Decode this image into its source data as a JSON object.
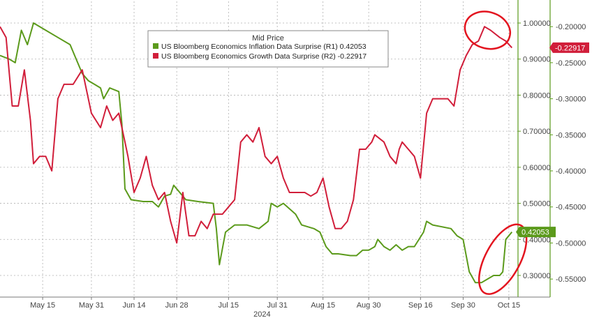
{
  "chart_data": {
    "type": "line",
    "legend": {
      "title": "Mid Price",
      "position": "top-center",
      "entries": [
        {
          "label": "US Bloomberg Economics Inflation Data Surprise",
          "axis": "(R1)",
          "value": "0.42053",
          "color": "#5b9a1b"
        },
        {
          "label": "US Bloomberg Economics Growth Data Surprise",
          "axis": "(R2)",
          "value": "-0.22917",
          "color": "#d11e3a"
        }
      ]
    },
    "x_axis": {
      "ticks": [
        "May 15",
        "May 31",
        "Jun 14",
        "Jun 28",
        "Jul 15",
        "Jul 31",
        "Aug 15",
        "Aug 30",
        "Sep 16",
        "Sep 30",
        "Oct 15"
      ],
      "year_label": "2024",
      "range": [
        "2024-05-01",
        "2024-10-18"
      ]
    },
    "r1_axis": {
      "ticks": [
        "1.00000",
        "0.90000",
        "0.80000",
        "0.70000",
        "0.60000",
        "0.50000",
        "0.40000",
        "0.30000"
      ],
      "range": [
        0.24,
        1.06
      ],
      "color": "#5b9a1b"
    },
    "r2_axis": {
      "ticks": [
        "-0.20000",
        "-0.25000",
        "-0.30000",
        "-0.35000",
        "-0.40000",
        "-0.45000",
        "-0.50000",
        "-0.55000"
      ],
      "range": [
        -0.575,
        -0.165
      ],
      "color": "#5b9a1b"
    },
    "last_value_tags": [
      {
        "series": "growth",
        "value": "-0.22917",
        "color": "#d11e3a"
      },
      {
        "series": "inflation",
        "value": "0.42053",
        "color": "#5b9a1b"
      }
    ],
    "series": [
      {
        "name": "US Bloomberg Economics Inflation Data Surprise",
        "axis": "R1",
        "color": "#5b9a1b",
        "points": [
          [
            "2024-05-01",
            0.91
          ],
          [
            "2024-05-04",
            0.9
          ],
          [
            "2024-05-06",
            0.89
          ],
          [
            "2024-05-08",
            0.98
          ],
          [
            "2024-05-10",
            0.94
          ],
          [
            "2024-05-12",
            1.0
          ],
          [
            "2024-05-16",
            0.98
          ],
          [
            "2024-05-20",
            0.96
          ],
          [
            "2024-05-24",
            0.94
          ],
          [
            "2024-05-26",
            0.9
          ],
          [
            "2024-05-28",
            0.86
          ],
          [
            "2024-05-30",
            0.84
          ],
          [
            "2024-06-01",
            0.83
          ],
          [
            "2024-06-03",
            0.82
          ],
          [
            "2024-06-04",
            0.79
          ],
          [
            "2024-06-06",
            0.82
          ],
          [
            "2024-06-09",
            0.81
          ],
          [
            "2024-06-10",
            0.72
          ],
          [
            "2024-06-11",
            0.54
          ],
          [
            "2024-06-13",
            0.51
          ],
          [
            "2024-06-17",
            0.505
          ],
          [
            "2024-06-20",
            0.505
          ],
          [
            "2024-06-22",
            0.49
          ],
          [
            "2024-06-24",
            0.52
          ],
          [
            "2024-06-26",
            0.525
          ],
          [
            "2024-06-27",
            0.55
          ],
          [
            "2024-06-29",
            0.53
          ],
          [
            "2024-07-01",
            0.51
          ],
          [
            "2024-07-05",
            0.505
          ],
          [
            "2024-07-10",
            0.5
          ],
          [
            "2024-07-11",
            0.43
          ],
          [
            "2024-07-12",
            0.33
          ],
          [
            "2024-07-14",
            0.42
          ],
          [
            "2024-07-17",
            0.44
          ],
          [
            "2024-07-21",
            0.44
          ],
          [
            "2024-07-25",
            0.43
          ],
          [
            "2024-07-28",
            0.45
          ],
          [
            "2024-07-29",
            0.5
          ],
          [
            "2024-07-31",
            0.49
          ],
          [
            "2024-08-02",
            0.5
          ],
          [
            "2024-08-06",
            0.47
          ],
          [
            "2024-08-08",
            0.44
          ],
          [
            "2024-08-12",
            0.43
          ],
          [
            "2024-08-14",
            0.42
          ],
          [
            "2024-08-16",
            0.38
          ],
          [
            "2024-08-18",
            0.36
          ],
          [
            "2024-08-20",
            0.36
          ],
          [
            "2024-08-24",
            0.355
          ],
          [
            "2024-08-26",
            0.355
          ],
          [
            "2024-08-28",
            0.37
          ],
          [
            "2024-08-30",
            0.37
          ],
          [
            "2024-09-01",
            0.38
          ],
          [
            "2024-09-02",
            0.4
          ],
          [
            "2024-09-04",
            0.38
          ],
          [
            "2024-09-06",
            0.37
          ],
          [
            "2024-09-08",
            0.385
          ],
          [
            "2024-09-10",
            0.37
          ],
          [
            "2024-09-12",
            0.38
          ],
          [
            "2024-09-14",
            0.38
          ],
          [
            "2024-09-17",
            0.42
          ],
          [
            "2024-09-18",
            0.45
          ],
          [
            "2024-09-20",
            0.44
          ],
          [
            "2024-09-23",
            0.435
          ],
          [
            "2024-09-26",
            0.43
          ],
          [
            "2024-09-28",
            0.41
          ],
          [
            "2024-09-30",
            0.4
          ],
          [
            "2024-10-02",
            0.31
          ],
          [
            "2024-10-04",
            0.28
          ],
          [
            "2024-10-06",
            0.28
          ],
          [
            "2024-10-08",
            0.29
          ],
          [
            "2024-10-10",
            0.3
          ],
          [
            "2024-10-12",
            0.3
          ],
          [
            "2024-10-13",
            0.31
          ],
          [
            "2024-10-14",
            0.4
          ],
          [
            "2024-10-16",
            0.42053
          ]
        ]
      },
      {
        "name": "US Bloomberg Economics Growth Data Surprise",
        "axis": "R2",
        "color": "#d11e3a",
        "points": [
          [
            "2024-05-01",
            -0.2
          ],
          [
            "2024-05-03",
            -0.215
          ],
          [
            "2024-05-05",
            -0.31
          ],
          [
            "2024-05-07",
            -0.31
          ],
          [
            "2024-05-09",
            -0.26
          ],
          [
            "2024-05-11",
            -0.33
          ],
          [
            "2024-05-12",
            -0.39
          ],
          [
            "2024-05-14",
            -0.38
          ],
          [
            "2024-05-16",
            -0.38
          ],
          [
            "2024-05-18",
            -0.4
          ],
          [
            "2024-05-20",
            -0.3
          ],
          [
            "2024-05-22",
            -0.28
          ],
          [
            "2024-05-25",
            -0.28
          ],
          [
            "2024-05-28",
            -0.26
          ],
          [
            "2024-05-31",
            -0.32
          ],
          [
            "2024-06-03",
            -0.34
          ],
          [
            "2024-06-05",
            -0.31
          ],
          [
            "2024-06-07",
            -0.33
          ],
          [
            "2024-06-09",
            -0.32
          ],
          [
            "2024-06-11",
            -0.36
          ],
          [
            "2024-06-12",
            -0.38
          ],
          [
            "2024-06-14",
            -0.43
          ],
          [
            "2024-06-16",
            -0.41
          ],
          [
            "2024-06-18",
            -0.38
          ],
          [
            "2024-06-20",
            -0.42
          ],
          [
            "2024-06-22",
            -0.44
          ],
          [
            "2024-06-24",
            -0.43
          ],
          [
            "2024-06-26",
            -0.47
          ],
          [
            "2024-06-28",
            -0.5
          ],
          [
            "2024-06-30",
            -0.43
          ],
          [
            "2024-07-02",
            -0.49
          ],
          [
            "2024-07-04",
            -0.49
          ],
          [
            "2024-07-06",
            -0.47
          ],
          [
            "2024-07-08",
            -0.48
          ],
          [
            "2024-07-10",
            -0.46
          ],
          [
            "2024-07-13",
            -0.46
          ],
          [
            "2024-07-15",
            -0.45
          ],
          [
            "2024-07-17",
            -0.44
          ],
          [
            "2024-07-19",
            -0.36
          ],
          [
            "2024-07-21",
            -0.35
          ],
          [
            "2024-07-23",
            -0.36
          ],
          [
            "2024-07-25",
            -0.34
          ],
          [
            "2024-07-27",
            -0.38
          ],
          [
            "2024-07-29",
            -0.39
          ],
          [
            "2024-07-31",
            -0.38
          ],
          [
            "2024-08-02",
            -0.41
          ],
          [
            "2024-08-04",
            -0.43
          ],
          [
            "2024-08-06",
            -0.43
          ],
          [
            "2024-08-09",
            -0.43
          ],
          [
            "2024-08-11",
            -0.435
          ],
          [
            "2024-08-13",
            -0.43
          ],
          [
            "2024-08-15",
            -0.41
          ],
          [
            "2024-08-17",
            -0.45
          ],
          [
            "2024-08-19",
            -0.48
          ],
          [
            "2024-08-21",
            -0.48
          ],
          [
            "2024-08-23",
            -0.47
          ],
          [
            "2024-08-25",
            -0.44
          ],
          [
            "2024-08-27",
            -0.37
          ],
          [
            "2024-08-29",
            -0.37
          ],
          [
            "2024-08-31",
            -0.36
          ],
          [
            "2024-09-01",
            -0.35
          ],
          [
            "2024-09-04",
            -0.36
          ],
          [
            "2024-09-06",
            -0.38
          ],
          [
            "2024-09-08",
            -0.39
          ],
          [
            "2024-09-09",
            -0.37
          ],
          [
            "2024-09-10",
            -0.36
          ],
          [
            "2024-09-12",
            -0.37
          ],
          [
            "2024-09-14",
            -0.38
          ],
          [
            "2024-09-16",
            -0.41
          ],
          [
            "2024-09-18",
            -0.32
          ],
          [
            "2024-09-20",
            -0.3
          ],
          [
            "2024-09-23",
            -0.3
          ],
          [
            "2024-09-25",
            -0.3
          ],
          [
            "2024-09-27",
            -0.31
          ],
          [
            "2024-09-29",
            -0.26
          ],
          [
            "2024-10-01",
            -0.24
          ],
          [
            "2024-10-03",
            -0.225
          ],
          [
            "2024-10-05",
            -0.22
          ],
          [
            "2024-10-07",
            -0.2
          ],
          [
            "2024-10-09",
            -0.205
          ],
          [
            "2024-10-12",
            -0.215
          ],
          [
            "2024-10-14",
            -0.22
          ],
          [
            "2024-10-16",
            -0.22917
          ]
        ]
      }
    ],
    "annotations": [
      {
        "type": "ellipse",
        "color": "#e3141f",
        "around": "growth series peak near Oct 7"
      },
      {
        "type": "ellipse",
        "color": "#e3141f",
        "around": "inflation series rebound near Oct 15"
      }
    ],
    "grid": true
  }
}
